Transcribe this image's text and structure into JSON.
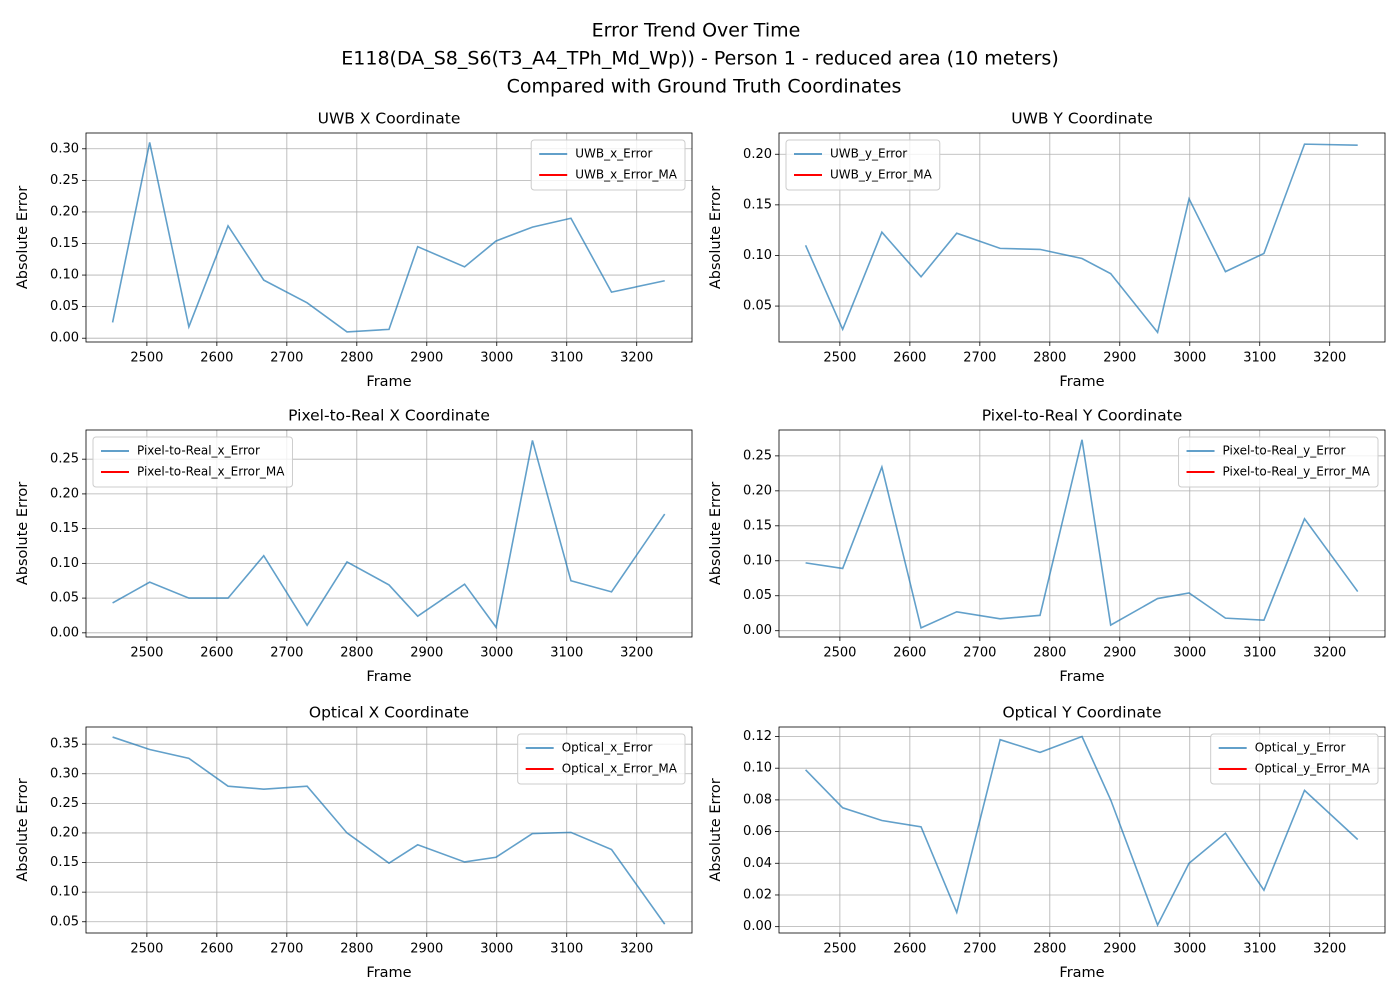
{
  "suptitle": [
    "Error Trend Over Time",
    "E118(DA_S8_S6(T3_A4_TPh_Md_Wp)) - Person 1 - reduced area (10 meters)",
    "Compared with Ground Truth Coordinates"
  ],
  "chart_data": [
    {
      "type": "line",
      "title": "UWB X Coordinate",
      "xlabel": "Frame",
      "ylabel": "Absolute Error",
      "legend": "upper right",
      "grid": true,
      "x": [
        2451,
        2504,
        2560,
        2616,
        2667,
        2729,
        2786,
        2846,
        2887,
        2954,
        2999,
        3051,
        3106,
        3164,
        3240
      ],
      "series": [
        {
          "name": "UWB_x_Error",
          "color": "#1f77b4",
          "alpha": 0.7,
          "values": [
            0.025,
            0.31,
            0.018,
            0.178,
            0.092,
            0.056,
            0.01,
            0.014,
            0.145,
            0.113,
            0.154,
            0.176,
            0.19,
            0.073,
            0.091
          ]
        },
        {
          "name": "UWB_x_Error_MA",
          "color": "#ff0000",
          "alpha": 1,
          "values": [
            null,
            null,
            null,
            null,
            null,
            null,
            null,
            null,
            null,
            null,
            null,
            null,
            null,
            null,
            null
          ]
        }
      ],
      "xlim": [
        2413,
        3279
      ],
      "xticks": [
        2500,
        2600,
        2700,
        2800,
        2900,
        3000,
        3100,
        3200
      ],
      "ylim": [
        -0.006,
        0.325
      ],
      "yticks": [
        {
          "value": 0,
          "label": "0.00"
        },
        {
          "value": 0.05,
          "label": "0.05"
        },
        {
          "value": 0.1,
          "label": "0.10"
        },
        {
          "value": 0.15,
          "label": "0.15"
        },
        {
          "value": 0.2,
          "label": "0.20"
        },
        {
          "value": 0.25,
          "label": "0.25"
        },
        {
          "value": 0.3,
          "label": "0.30"
        }
      ]
    },
    {
      "type": "line",
      "title": "UWB Y Coordinate",
      "xlabel": "Frame",
      "ylabel": "Absolute Error",
      "legend": "upper left",
      "grid": true,
      "x": [
        2451,
        2504,
        2560,
        2616,
        2667,
        2729,
        2786,
        2846,
        2887,
        2954,
        2999,
        3051,
        3106,
        3164,
        3240
      ],
      "series": [
        {
          "name": "UWB_y_Error",
          "color": "#1f77b4",
          "alpha": 0.7,
          "values": [
            0.11,
            0.027,
            0.123,
            0.079,
            0.122,
            0.107,
            0.106,
            0.097,
            0.082,
            0.024,
            0.156,
            0.084,
            0.102,
            0.21,
            0.209
          ]
        },
        {
          "name": "UWB_y_Error_MA",
          "color": "#ff0000",
          "alpha": 1,
          "values": [
            null,
            null,
            null,
            null,
            null,
            null,
            null,
            null,
            null,
            null,
            null,
            null,
            null,
            null,
            null
          ]
        }
      ],
      "xlim": [
        2413,
        3279
      ],
      "xticks": [
        2500,
        2600,
        2700,
        2800,
        2900,
        3000,
        3100,
        3200
      ],
      "ylim": [
        0.0145,
        0.221
      ],
      "yticks": [
        {
          "value": 0.05,
          "label": "0.05"
        },
        {
          "value": 0.1,
          "label": "0.10"
        },
        {
          "value": 0.15,
          "label": "0.15"
        },
        {
          "value": 0.2,
          "label": "0.20"
        }
      ]
    },
    {
      "type": "line",
      "title": "Pixel-to-Real X Coordinate",
      "xlabel": "Frame",
      "ylabel": "Absolute Error",
      "legend": "upper left",
      "grid": true,
      "x": [
        2451,
        2504,
        2560,
        2616,
        2667,
        2729,
        2786,
        2846,
        2887,
        2954,
        2999,
        3051,
        3106,
        3164,
        3240
      ],
      "series": [
        {
          "name": "Pixel-to-Real_x_Error",
          "color": "#1f77b4",
          "alpha": 0.7,
          "values": [
            0.043,
            0.073,
            0.05,
            0.05,
            0.111,
            0.011,
            0.102,
            0.069,
            0.024,
            0.07,
            0.008,
            0.277,
            0.075,
            0.059,
            0.171
          ]
        },
        {
          "name": "Pixel-to-Real_x_Error_MA",
          "color": "#ff0000",
          "alpha": 1,
          "values": [
            null,
            null,
            null,
            null,
            null,
            null,
            null,
            null,
            null,
            null,
            null,
            null,
            null,
            null,
            null
          ]
        }
      ],
      "xlim": [
        2413,
        3279
      ],
      "xticks": [
        2500,
        2600,
        2700,
        2800,
        2900,
        3000,
        3100,
        3200
      ],
      "ylim": [
        -0.006,
        0.292
      ],
      "yticks": [
        {
          "value": 0,
          "label": "0.00"
        },
        {
          "value": 0.05,
          "label": "0.05"
        },
        {
          "value": 0.1,
          "label": "0.10"
        },
        {
          "value": 0.15,
          "label": "0.15"
        },
        {
          "value": 0.2,
          "label": "0.20"
        },
        {
          "value": 0.25,
          "label": "0.25"
        }
      ]
    },
    {
      "type": "line",
      "title": "Pixel-to-Real Y Coordinate",
      "xlabel": "Frame",
      "ylabel": "Absolute Error",
      "legend": "upper right",
      "grid": true,
      "x": [
        2451,
        2504,
        2560,
        2616,
        2667,
        2729,
        2786,
        2846,
        2887,
        2954,
        2999,
        3051,
        3106,
        3164,
        3240
      ],
      "series": [
        {
          "name": "Pixel-to-Real_y_Error",
          "color": "#1f77b4",
          "alpha": 0.7,
          "values": [
            0.097,
            0.089,
            0.234,
            0.004,
            0.027,
            0.017,
            0.022,
            0.273,
            0.008,
            0.046,
            0.054,
            0.018,
            0.015,
            0.16,
            0.056
          ]
        },
        {
          "name": "Pixel-to-Real_y_Error_MA",
          "color": "#ff0000",
          "alpha": 1,
          "values": [
            null,
            null,
            null,
            null,
            null,
            null,
            null,
            null,
            null,
            null,
            null,
            null,
            null,
            null,
            null
          ]
        }
      ],
      "xlim": [
        2413,
        3279
      ],
      "xticks": [
        2500,
        2600,
        2700,
        2800,
        2900,
        3000,
        3100,
        3200
      ],
      "ylim": [
        -0.009,
        0.287
      ],
      "yticks": [
        {
          "value": 0,
          "label": "0.00"
        },
        {
          "value": 0.05,
          "label": "0.05"
        },
        {
          "value": 0.1,
          "label": "0.10"
        },
        {
          "value": 0.15,
          "label": "0.15"
        },
        {
          "value": 0.2,
          "label": "0.20"
        },
        {
          "value": 0.25,
          "label": "0.25"
        }
      ]
    },
    {
      "type": "line",
      "title": "Optical X Coordinate",
      "xlabel": "Frame",
      "ylabel": "Absolute Error",
      "legend": "upper right",
      "grid": true,
      "x": [
        2451,
        2504,
        2560,
        2616,
        2667,
        2729,
        2786,
        2846,
        2887,
        2954,
        2999,
        3051,
        3106,
        3164,
        3240
      ],
      "series": [
        {
          "name": "Optical_x_Error",
          "color": "#1f77b4",
          "alpha": 0.7,
          "values": [
            0.362,
            0.341,
            0.326,
            0.279,
            0.274,
            0.279,
            0.2,
            0.149,
            0.18,
            0.151,
            0.159,
            0.199,
            0.201,
            0.172,
            0.046
          ]
        },
        {
          "name": "Optical_x_Error_MA",
          "color": "#ff0000",
          "alpha": 1,
          "values": [
            null,
            null,
            null,
            null,
            null,
            null,
            null,
            null,
            null,
            null,
            null,
            null,
            null,
            null,
            null
          ]
        }
      ],
      "xlim": [
        2413,
        3279
      ],
      "xticks": [
        2500,
        2600,
        2700,
        2800,
        2900,
        3000,
        3100,
        3200
      ],
      "ylim": [
        0.031,
        0.379
      ],
      "yticks": [
        {
          "value": 0.05,
          "label": "0.05"
        },
        {
          "value": 0.1,
          "label": "0.10"
        },
        {
          "value": 0.15,
          "label": "0.15"
        },
        {
          "value": 0.2,
          "label": "0.20"
        },
        {
          "value": 0.25,
          "label": "0.25"
        },
        {
          "value": 0.3,
          "label": "0.30"
        },
        {
          "value": 0.35,
          "label": "0.35"
        }
      ]
    },
    {
      "type": "line",
      "title": "Optical Y Coordinate",
      "xlabel": "Frame",
      "ylabel": "Absolute Error",
      "legend": "upper right",
      "grid": true,
      "x": [
        2451,
        2504,
        2560,
        2616,
        2667,
        2729,
        2786,
        2846,
        2887,
        2954,
        2999,
        3051,
        3106,
        3164,
        3240
      ],
      "series": [
        {
          "name": "Optical_y_Error",
          "color": "#1f77b4",
          "alpha": 0.7,
          "values": [
            0.099,
            0.075,
            0.067,
            0.063,
            0.009,
            0.118,
            0.11,
            0.12,
            0.08,
            0.001,
            0.04,
            0.059,
            0.023,
            0.086,
            0.055
          ]
        },
        {
          "name": "Optical_y_Error_MA",
          "color": "#ff0000",
          "alpha": 1,
          "values": [
            null,
            null,
            null,
            null,
            null,
            null,
            null,
            null,
            null,
            null,
            null,
            null,
            null,
            null,
            null
          ]
        }
      ],
      "xlim": [
        2413,
        3279
      ],
      "xticks": [
        2500,
        2600,
        2700,
        2800,
        2900,
        3000,
        3100,
        3200
      ],
      "ylim": [
        -0.004,
        0.126
      ],
      "yticks": [
        {
          "value": 0,
          "label": "0.00"
        },
        {
          "value": 0.02,
          "label": "0.02"
        },
        {
          "value": 0.04,
          "label": "0.04"
        },
        {
          "value": 0.06,
          "label": "0.06"
        },
        {
          "value": 0.08,
          "label": "0.08"
        },
        {
          "value": 0.1,
          "label": "0.10"
        },
        {
          "value": 0.12,
          "label": "0.12"
        }
      ]
    }
  ]
}
